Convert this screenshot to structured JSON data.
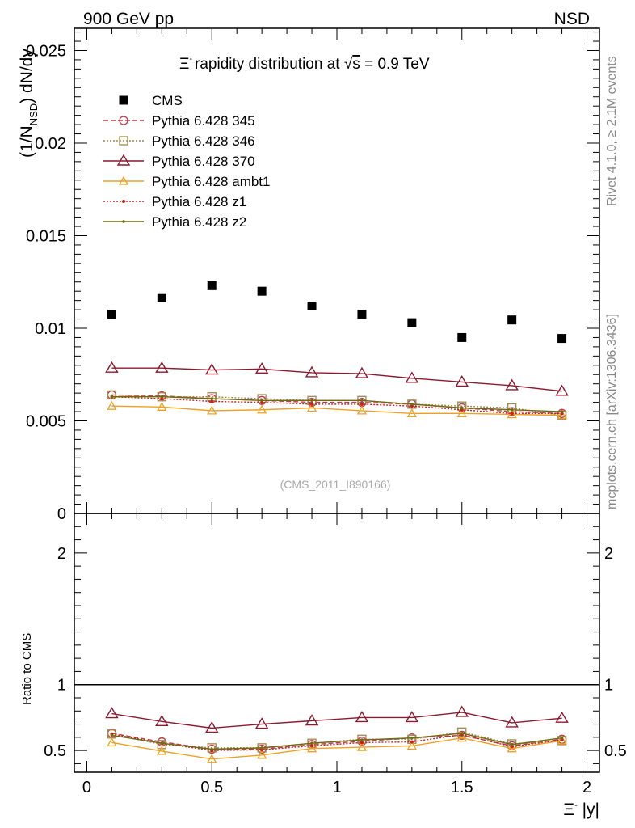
{
  "header": {
    "left": "900 GeV pp",
    "right": "NSD"
  },
  "side_labels": {
    "rivet": "Rivet 4.1.0, ≥ 2.1M events",
    "mcplots": "mcplots.cern.ch [arXiv:1306.3436]"
  },
  "watermark": "(CMS_2011_I890166)",
  "title": {
    "xi_symbol": "Ξ",
    "charge": "-",
    "rest": "rapidity distribution at ",
    "sqrt": "√",
    "s": "s",
    "energy": " = 0.9 TeV"
  },
  "ylabel_main": {
    "open": "(1/N",
    "sub": "NSD",
    "close": ") dN/dy"
  },
  "ylabel_ratio": "Ratio to CMS",
  "xlabel": {
    "xi_symbol": "Ξ",
    "charge": "-",
    "rest": " |y|"
  },
  "colors": {
    "cms": "#000000",
    "p345": "#c0394b",
    "p346": "#a0884a",
    "p370": "#8b1a2f",
    "ambt1": "#f0a020",
    "z1": "#c4201e",
    "z2": "#6b6b10"
  },
  "chart_data": {
    "type": "scatter",
    "title": "Ξ- rapidity distribution at √s = 0.9 TeV",
    "xlabel": "Ξ- |y|",
    "ylabel": "(1/N_NSD) dN/dy",
    "xlim": [
      -0.05,
      2.05
    ],
    "ylim": [
      0,
      0.0262
    ],
    "ratio_ylim": [
      0.335,
      2.3
    ],
    "x_ticks": [
      "0",
      "0.5",
      "1",
      "1.5",
      "2"
    ],
    "y_ticks": [
      "0",
      "0.005",
      "0.01",
      "0.015",
      "0.02",
      "0.025"
    ],
    "ratio_ticks": [
      "0.5",
      "1",
      "2"
    ],
    "x": [
      0.1,
      0.3,
      0.5,
      0.7,
      0.9,
      1.1,
      1.3,
      1.5,
      1.7,
      1.9
    ],
    "data": {
      "name": "CMS",
      "values": [
        0.01075,
        0.01165,
        0.0123,
        0.012,
        0.0112,
        0.01075,
        0.0103,
        0.0095,
        0.01045,
        0.00945
      ]
    },
    "series": [
      {
        "name": "Pythia 6.428 345",
        "values": [
          0.0064,
          0.00635,
          0.0062,
          0.0061,
          0.006,
          0.006,
          0.0059,
          0.0057,
          0.0055,
          0.0054
        ]
      },
      {
        "name": "Pythia 6.428 346",
        "values": [
          0.0064,
          0.0063,
          0.0063,
          0.0062,
          0.0061,
          0.0061,
          0.0059,
          0.0058,
          0.0057,
          0.0053
        ]
      },
      {
        "name": "Pythia 6.428 370",
        "values": [
          0.00785,
          0.00785,
          0.00775,
          0.0078,
          0.0076,
          0.00755,
          0.0073,
          0.0071,
          0.0069,
          0.0066
        ]
      },
      {
        "name": "Pythia 6.428 ambt1",
        "values": [
          0.0058,
          0.00575,
          0.00555,
          0.0056,
          0.0057,
          0.00555,
          0.0054,
          0.0054,
          0.00535,
          0.0053
        ]
      },
      {
        "name": "Pythia 6.428 z1",
        "values": [
          0.0063,
          0.0062,
          0.00605,
          0.006,
          0.0059,
          0.0059,
          0.0058,
          0.0056,
          0.0054,
          0.0054
        ]
      },
      {
        "name": "Pythia 6.428 z2",
        "values": [
          0.0063,
          0.0063,
          0.0062,
          0.0061,
          0.0061,
          0.0061,
          0.0059,
          0.0057,
          0.0056,
          0.0055
        ]
      }
    ],
    "ratios": [
      {
        "name": "Pythia 6.428 345",
        "values": [
          0.63,
          0.565,
          0.51,
          0.51,
          0.545,
          0.57,
          0.595,
          0.615,
          0.535,
          0.585
        ]
      },
      {
        "name": "Pythia 6.428 346",
        "values": [
          0.625,
          0.545,
          0.52,
          0.52,
          0.555,
          0.585,
          0.585,
          0.64,
          0.55,
          0.575
        ]
      },
      {
        "name": "Pythia 6.428 370",
        "values": [
          0.78,
          0.72,
          0.67,
          0.7,
          0.725,
          0.75,
          0.75,
          0.79,
          0.71,
          0.745
        ]
      },
      {
        "name": "Pythia 6.428 ambt1",
        "values": [
          0.56,
          0.495,
          0.435,
          0.465,
          0.515,
          0.525,
          0.535,
          0.595,
          0.515,
          0.575
        ]
      },
      {
        "name": "Pythia 6.428 z1",
        "values": [
          0.625,
          0.555,
          0.5,
          0.505,
          0.535,
          0.56,
          0.565,
          0.62,
          0.53,
          0.58
        ]
      },
      {
        "name": "Pythia 6.428 z2",
        "values": [
          0.615,
          0.555,
          0.51,
          0.52,
          0.555,
          0.58,
          0.595,
          0.63,
          0.545,
          0.595
        ]
      }
    ],
    "legend": [
      {
        "label": "CMS",
        "marker": "filled-square",
        "line": "none",
        "colorKey": "cms"
      },
      {
        "label": "Pythia 6.428 345",
        "marker": "open-circle",
        "line": "dashed",
        "colorKey": "p345"
      },
      {
        "label": "Pythia 6.428 346",
        "marker": "open-square",
        "line": "dotted",
        "colorKey": "p346"
      },
      {
        "label": "Pythia 6.428 370",
        "marker": "open-triangle",
        "line": "solid",
        "colorKey": "p370"
      },
      {
        "label": "Pythia 6.428 ambt1",
        "marker": "open-triangle",
        "line": "solid",
        "colorKey": "ambt1"
      },
      {
        "label": "Pythia 6.428 z1",
        "marker": "small-star",
        "line": "dotted",
        "colorKey": "z1"
      },
      {
        "label": "Pythia 6.428 z2",
        "marker": "small-dot",
        "line": "solid",
        "colorKey": "z2"
      }
    ],
    "legend_position": "top-left"
  }
}
